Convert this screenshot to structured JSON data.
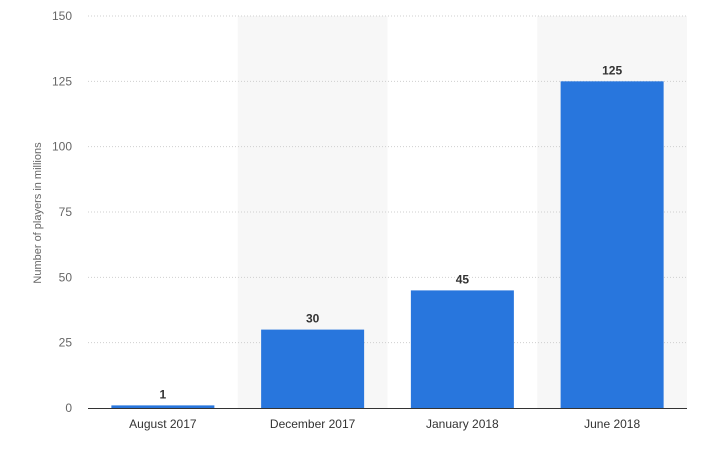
{
  "chart_data": {
    "type": "bar",
    "title": "",
    "xlabel": "",
    "ylabel": "Number of players in millions",
    "categories": [
      "August 2017",
      "December 2017",
      "January 2018",
      "June 2018"
    ],
    "values": [
      1,
      30,
      45,
      125
    ],
    "data_labels": [
      "1",
      "30",
      "45",
      "125"
    ],
    "ylim": [
      0,
      150
    ],
    "yticks": [
      0,
      25,
      50,
      75,
      100,
      125,
      150
    ],
    "grid": true,
    "legend": "none",
    "bar_color": "#2876dd",
    "band_color": "#f7f7f7"
  }
}
